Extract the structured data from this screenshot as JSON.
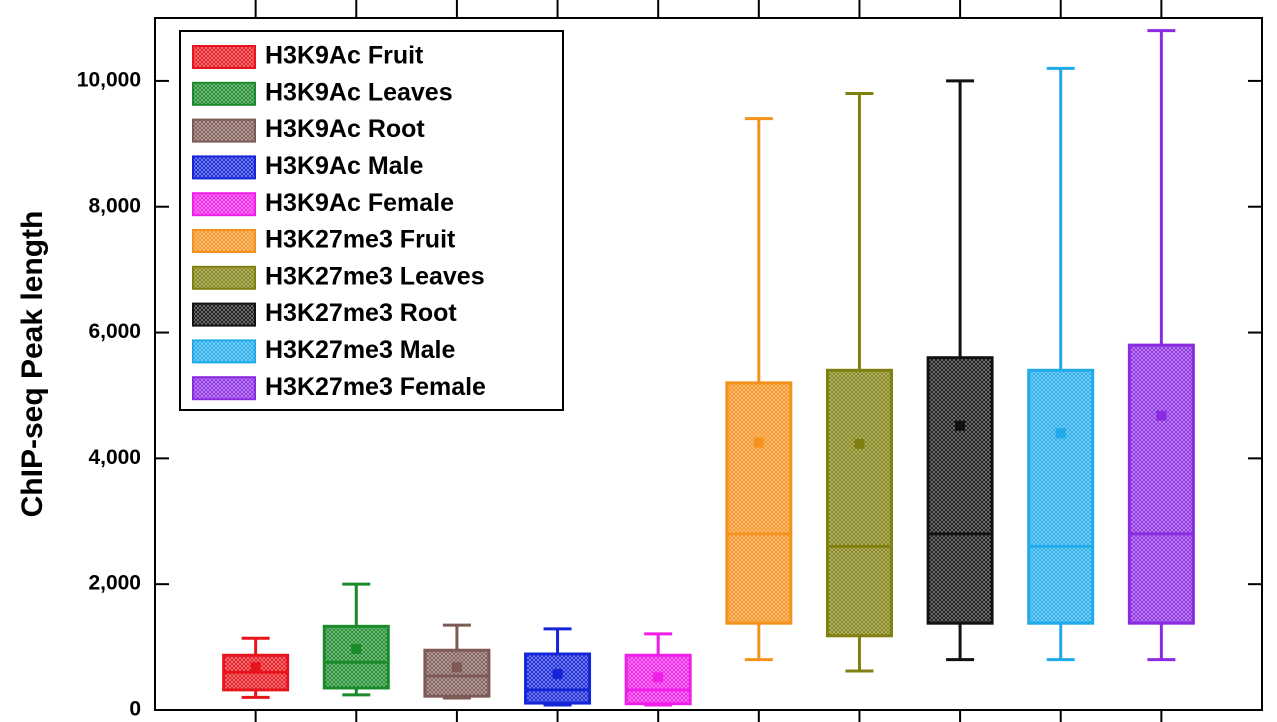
{
  "chart_data": {
    "type": "box",
    "y_label": "ChIP-seq Peak length",
    "ylim": [
      0,
      11000
    ],
    "yticks": [
      0,
      {
        "value": 2000,
        "label": "2,000"
      },
      {
        "value": 4000,
        "label": "4,000"
      },
      {
        "value": 6000,
        "label": "6,000"
      },
      {
        "value": 8000,
        "label": "8,000"
      },
      {
        "value": 10000,
        "label": "10,000"
      }
    ],
    "legend": "upper left",
    "series": [
      {
        "name": "H3K9Ac Fruit",
        "color": "#e8141c",
        "whisker_low": 200,
        "q1": 320,
        "median": 600,
        "q3": 870,
        "whisker_high": 1140,
        "mean": 680
      },
      {
        "name": "H3K9Ac Leaves",
        "color": "#1a8a2a",
        "whisker_low": 240,
        "q1": 350,
        "median": 760,
        "q3": 1330,
        "whisker_high": 2000,
        "mean": 970
      },
      {
        "name": "H3K9Ac Root",
        "color": "#7d5a55",
        "whisker_low": 190,
        "q1": 220,
        "median": 540,
        "q3": 950,
        "whisker_high": 1350,
        "mean": 680
      },
      {
        "name": "H3K9Ac Male",
        "color": "#1424d8",
        "whisker_low": 80,
        "q1": 110,
        "median": 320,
        "q3": 890,
        "whisker_high": 1290,
        "mean": 570
      },
      {
        "name": "H3K9Ac Female",
        "color": "#f01ee8",
        "whisker_low": 80,
        "q1": 100,
        "median": 320,
        "q3": 870,
        "whisker_high": 1210,
        "mean": 520
      },
      {
        "name": "H3K27me3 Fruit",
        "color": "#f5921e",
        "whisker_low": 800,
        "q1": 1380,
        "median": 2800,
        "q3": 5200,
        "whisker_high": 9400,
        "mean": 4250
      },
      {
        "name": "H3K27me3 Leaves",
        "color": "#808010",
        "whisker_low": 620,
        "q1": 1180,
        "median": 2600,
        "q3": 5400,
        "whisker_high": 9800,
        "mean": 4230
      },
      {
        "name": "H3K27me3 Root",
        "color": "#111111",
        "whisker_low": 800,
        "q1": 1380,
        "median": 2800,
        "q3": 5600,
        "whisker_high": 10000,
        "mean": 4520
      },
      {
        "name": "H3K27me3 Male",
        "color": "#20aaea",
        "whisker_low": 800,
        "q1": 1380,
        "median": 2600,
        "q3": 5400,
        "whisker_high": 10200,
        "mean": 4400
      },
      {
        "name": "H3K27me3 Female",
        "color": "#8a2be2",
        "whisker_low": 800,
        "q1": 1380,
        "median": 2800,
        "q3": 5800,
        "whisker_high": 10800,
        "mean": 4680
      }
    ]
  }
}
